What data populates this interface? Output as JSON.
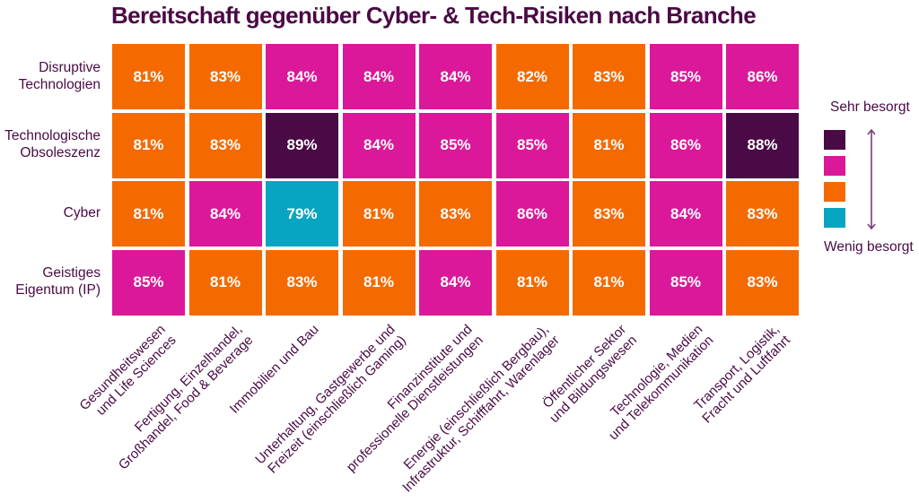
{
  "chart_data": {
    "type": "heatmap",
    "title": "Bereitschaft gegenüber Cyber- & Tech-Risiken nach Branche",
    "xlabel": "",
    "ylabel": "",
    "rows": [
      "Disruptive\nTechnologien",
      "Technologische\nObsoleszenz",
      "Cyber",
      "Geistiges\nEigentum (IP)"
    ],
    "columns": [
      "Gesundheitswesen\nund Life Sciences",
      "Fertigung, Einzelhandel,\nGroßhandel, Food & Beverage",
      "Immobilien und Bau",
      "Unterhaltung, Gastgewerbe und\nFreizeit (einschließlich Gaming)",
      "Finanzinstitute und\nprofessionelle Dienstleistungen",
      "Energie (einschließlich Bergbau),\nInfrastruktur, Schifffahrt, Warenlager",
      "Öffentlicher Sektor\nund Bildungswesen",
      "Technologie, Medien\nund Telekommunikation",
      "Transport, Logistik,\nFracht und Luftfahrt"
    ],
    "values": [
      [
        81,
        83,
        84,
        84,
        84,
        82,
        83,
        85,
        86
      ],
      [
        81,
        83,
        89,
        84,
        85,
        85,
        81,
        86,
        88
      ],
      [
        81,
        84,
        79,
        81,
        83,
        86,
        83,
        84,
        83
      ],
      [
        85,
        81,
        83,
        81,
        84,
        81,
        81,
        85,
        83
      ]
    ],
    "value_suffix": "%",
    "color_levels": [
      {
        "level": "highest",
        "color": "#4a0a45"
      },
      {
        "level": "high",
        "color": "#db1899"
      },
      {
        "level": "medium",
        "color": "#f46a00"
      },
      {
        "level": "low",
        "color": "#07a5c2"
      }
    ],
    "cell_levels": [
      [
        "medium",
        "medium",
        "high",
        "high",
        "high",
        "medium",
        "medium",
        "high",
        "high"
      ],
      [
        "medium",
        "medium",
        "highest",
        "high",
        "high",
        "high",
        "medium",
        "high",
        "highest"
      ],
      [
        "medium",
        "high",
        "low",
        "medium",
        "medium",
        "high",
        "medium",
        "high",
        "medium"
      ],
      [
        "high",
        "medium",
        "medium",
        "medium",
        "high",
        "medium",
        "medium",
        "high",
        "medium"
      ]
    ],
    "legend": {
      "placement": "right",
      "top_label": "Sehr besorgt",
      "bottom_label": "Wenig besorgt",
      "arrow_color": "#7b3b7b"
    }
  }
}
